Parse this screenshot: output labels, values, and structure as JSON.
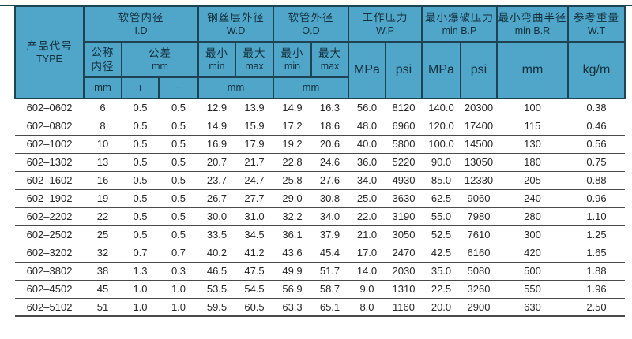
{
  "colors": {
    "header_bg": "#4fa6c9",
    "header_border": "#1e4453",
    "header_text": "#132f3c",
    "body_text": "#262626",
    "row_line": "#4a4a4a"
  },
  "header": {
    "type_zh": "产品代号",
    "type_en": "TYPE",
    "id_zh": "软管内径",
    "id_en": "I.D",
    "wd_zh": "钢丝层外径",
    "wd_en": "W.D",
    "od_zh": "软管外径",
    "od_en": "O.D",
    "wp_zh": "工作压力",
    "wp_en": "W.P",
    "bp_zh": "最小爆破压力",
    "bp_en": "min B.P",
    "br_zh": "最小弯曲半径",
    "br_en": "min B.R",
    "wt_zh": "参考重量",
    "wt_en": "W.T",
    "nominal_zh_l1": "公称",
    "nominal_zh_l2": "内径",
    "tol_zh": "公差",
    "tol_unit": "mm",
    "min_zh": "最小",
    "min_en": "min",
    "max_zh": "最大",
    "max_en": "max",
    "unit_mm": "mm",
    "tol_plus": "+",
    "tol_minus": "−",
    "unit_mpa": "MPa",
    "unit_psi": "psi",
    "unit_kgm": "kg/m"
  },
  "table": {
    "col_keys": [
      "type",
      "id_nominal_mm",
      "tol_plus_mm",
      "tol_minus_mm",
      "wd_min_mm",
      "wd_max_mm",
      "od_min_mm",
      "od_max_mm",
      "wp_mpa",
      "wp_psi",
      "bp_mpa",
      "bp_psi",
      "br_mm",
      "wt_kg_per_m"
    ],
    "rows": [
      [
        "602–0602",
        "6",
        "0.5",
        "0.5",
        "12.9",
        "13.9",
        "14.9",
        "16.3",
        "56.0",
        "8120",
        "140.0",
        "20300",
        "100",
        "0.38"
      ],
      [
        "602–0802",
        "8",
        "0.5",
        "0.5",
        "14.9",
        "15.9",
        "17.2",
        "18.6",
        "48.0",
        "6960",
        "120.0",
        "17400",
        "115",
        "0.46"
      ],
      [
        "602–1002",
        "10",
        "0.5",
        "0.5",
        "16.9",
        "17.9",
        "19.2",
        "20.6",
        "40.0",
        "5800",
        "100.0",
        "14500",
        "130",
        "0.56"
      ],
      [
        "602–1302",
        "13",
        "0.5",
        "0.5",
        "20.7",
        "21.7",
        "22.8",
        "24.6",
        "36.0",
        "5220",
        "90.0",
        "13050",
        "180",
        "0.75"
      ],
      [
        "602–1602",
        "16",
        "0.5",
        "0.5",
        "23.7",
        "24.7",
        "25.8",
        "27.6",
        "34.0",
        "4930",
        "85.0",
        "12330",
        "205",
        "0.88"
      ],
      [
        "602–1902",
        "19",
        "0.5",
        "0.5",
        "26.7",
        "27.7",
        "29.0",
        "30.8",
        "25.0",
        "3630",
        "62.5",
        "9060",
        "240",
        "0.96"
      ],
      [
        "602–2202",
        "22",
        "0.5",
        "0.5",
        "30.0",
        "31.0",
        "32.2",
        "34.0",
        "22.0",
        "3190",
        "55.0",
        "7980",
        "280",
        "1.10"
      ],
      [
        "602–2502",
        "25",
        "0.5",
        "0.5",
        "33.5",
        "34.5",
        "36.1",
        "37.9",
        "21.0",
        "3050",
        "52.5",
        "7610",
        "300",
        "1.25"
      ],
      [
        "602–3202",
        "32",
        "0.7",
        "0.7",
        "40.2",
        "41.2",
        "43.6",
        "45.4",
        "17.0",
        "2470",
        "42.5",
        "6160",
        "420",
        "1.65"
      ],
      [
        "602–3802",
        "38",
        "1.3",
        "0.3",
        "46.5",
        "47.5",
        "49.9",
        "51.7",
        "14.0",
        "2030",
        "35.0",
        "5080",
        "500",
        "1.88"
      ],
      [
        "602–4502",
        "45",
        "1.0",
        "1.0",
        "53.5",
        "54.5",
        "56.9",
        "58.7",
        "9.0",
        "1310",
        "22.5",
        "3260",
        "550",
        "1.96"
      ],
      [
        "602–5102",
        "51",
        "1.0",
        "1.0",
        "59.5",
        "60.5",
        "63.3",
        "65.1",
        "8.0",
        "1160",
        "20.0",
        "2900",
        "630",
        "2.50"
      ]
    ]
  }
}
